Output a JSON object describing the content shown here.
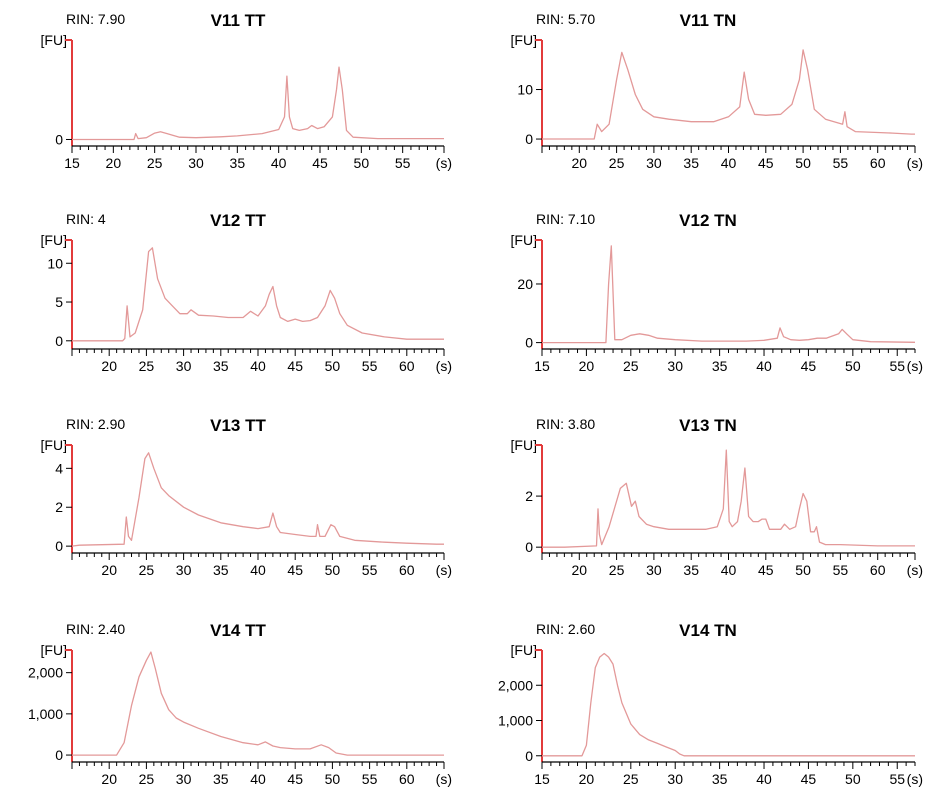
{
  "chart_data": [
    {
      "type": "line",
      "title": "V11 TT",
      "rin_label": "RIN: 7.90",
      "ylabel": "[FU]",
      "xlabel": "(s)",
      "xlim": [
        15,
        60
      ],
      "ylim": [
        -1,
        22
      ],
      "xticks": [
        15,
        20,
        25,
        30,
        35,
        40,
        45,
        50,
        55
      ],
      "yticks": [
        0
      ],
      "x_minor_end": 60,
      "series": [
        {
          "x": [
            15,
            22,
            22.5,
            22.7,
            23,
            24,
            25,
            25.7,
            26.5,
            28,
            30,
            33,
            35,
            38,
            40,
            40.7,
            41.0,
            41.3,
            41.7,
            42.5,
            43.5,
            44,
            44.7,
            45.5,
            46.5,
            47.0,
            47.3,
            47.7,
            48.2,
            49,
            52,
            60
          ],
          "y": [
            0,
            0,
            0,
            1.3,
            0.2,
            0.4,
            1.4,
            1.7,
            1.3,
            0.5,
            0.4,
            0.6,
            0.8,
            1.3,
            2.2,
            5.0,
            14.0,
            5.0,
            2.4,
            2.0,
            2.4,
            3.1,
            2.4,
            2.8,
            5.0,
            11.0,
            16.0,
            11.0,
            2.0,
            0.5,
            0.2,
            0.2
          ]
        }
      ]
    },
    {
      "type": "line",
      "title": "V11 TN",
      "rin_label": "RIN: 5.70",
      "ylabel": "[FU]",
      "xlabel": "(s)",
      "xlim": [
        15,
        65
      ],
      "ylim": [
        -1,
        20
      ],
      "xticks": [
        20,
        25,
        30,
        35,
        40,
        45,
        50,
        55,
        60
      ],
      "yticks": [
        0,
        10
      ],
      "x_minor_end": 65,
      "series": [
        {
          "x": [
            15,
            21,
            22,
            22.4,
            23,
            24,
            25,
            25.7,
            26.5,
            27.5,
            28.5,
            30,
            32,
            35,
            38,
            40,
            41.5,
            42.1,
            42.7,
            43.5,
            45,
            47,
            48.5,
            49.5,
            50,
            50.6,
            51.5,
            53,
            55.3,
            55.6,
            55.9,
            57,
            62,
            64.5,
            65
          ],
          "y": [
            0,
            0,
            0,
            3.0,
            1.5,
            3.0,
            12.0,
            17.5,
            14.0,
            9.0,
            6.0,
            4.5,
            4.0,
            3.5,
            3.5,
            4.5,
            6.5,
            13.5,
            8.0,
            5.0,
            4.8,
            5.0,
            7.0,
            12.0,
            18.0,
            14.0,
            6.0,
            4.0,
            3.0,
            5.5,
            2.5,
            1.5,
            1.2,
            1.0,
            1.0
          ]
        }
      ]
    },
    {
      "type": "line",
      "title": "V12 TT",
      "rin_label": "RIN: 4",
      "ylabel": "[FU]",
      "xlabel": "(s)",
      "xlim": [
        15,
        65
      ],
      "ylim": [
        -0.8,
        13
      ],
      "xticks": [
        20,
        25,
        30,
        35,
        40,
        45,
        50,
        55,
        60
      ],
      "yticks": [
        0,
        5,
        10
      ],
      "x_minor_end": 65,
      "series": [
        {
          "x": [
            15,
            21.8,
            22.1,
            22.4,
            22.8,
            23.5,
            24.5,
            25.3,
            25.8,
            26.5,
            27.5,
            28.5,
            29.5,
            30.5,
            31,
            32,
            34,
            36,
            38,
            39,
            40,
            41,
            41.5,
            42.0,
            42.5,
            43,
            44,
            45,
            46,
            47,
            48,
            49,
            49.7,
            50.3,
            51,
            52,
            54,
            57,
            60,
            65
          ],
          "y": [
            0,
            0,
            0.3,
            4.5,
            0.5,
            1.0,
            4.0,
            11.5,
            12.0,
            8.0,
            5.5,
            4.5,
            3.5,
            3.5,
            4.0,
            3.3,
            3.2,
            3.0,
            3.0,
            3.8,
            3.2,
            4.5,
            6.0,
            7.0,
            4.5,
            3.0,
            2.5,
            2.8,
            2.5,
            2.6,
            3.0,
            4.5,
            6.5,
            5.5,
            3.5,
            2.0,
            1.0,
            0.5,
            0.2,
            0.2
          ]
        }
      ]
    },
    {
      "type": "line",
      "title": "V12 TN",
      "rin_label": "RIN: 7.10",
      "ylabel": "[FU]",
      "xlabel": "(s)",
      "xlim": [
        15,
        57
      ],
      "ylim": [
        -1.5,
        35
      ],
      "xticks": [
        15,
        20,
        25,
        30,
        35,
        40,
        45,
        50,
        55
      ],
      "yticks": [
        0,
        20
      ],
      "x_minor_end": 60,
      "series": [
        {
          "x": [
            15,
            22.2,
            22.5,
            22.8,
            23.2,
            24,
            25,
            26,
            27,
            28,
            30,
            33,
            36,
            38,
            40,
            41.5,
            41.8,
            42.2,
            43,
            44,
            45,
            46,
            47,
            48.4,
            48.8,
            49.3,
            50,
            52,
            57
          ],
          "y": [
            0,
            0,
            20.0,
            33.0,
            1.0,
            1.0,
            2.5,
            3.0,
            2.5,
            1.5,
            1.0,
            0.5,
            0.5,
            0.5,
            0.8,
            1.5,
            5.0,
            2.0,
            1.0,
            0.8,
            1.0,
            1.5,
            1.5,
            3.0,
            4.5,
            3.0,
            1.0,
            0.3,
            0.1
          ]
        }
      ]
    },
    {
      "type": "line",
      "title": "V13 TT",
      "rin_label": "RIN: 2.90",
      "ylabel": "[FU]",
      "xlabel": "(s)",
      "xlim": [
        15,
        65
      ],
      "ylim": [
        -0.25,
        5.2
      ],
      "xticks": [
        20,
        25,
        30,
        35,
        40,
        45,
        50,
        55,
        60
      ],
      "yticks": [
        0,
        2,
        4
      ],
      "x_minor_end": 65,
      "series": [
        {
          "x": [
            15,
            16,
            22.0,
            22.3,
            22.6,
            23,
            24,
            24.8,
            25.3,
            26,
            27,
            28,
            30,
            32,
            35,
            38,
            40,
            41.5,
            42,
            42.5,
            43,
            45,
            47,
            47.8,
            48,
            48.3,
            49,
            49.8,
            50.3,
            51,
            53,
            57,
            60,
            64,
            65
          ],
          "y": [
            0,
            0.05,
            0.1,
            1.5,
            0.5,
            0.3,
            2.5,
            4.5,
            4.8,
            4.0,
            3.0,
            2.6,
            2.0,
            1.6,
            1.2,
            1.0,
            0.9,
            1.0,
            1.7,
            1.0,
            0.7,
            0.6,
            0.5,
            0.5,
            1.1,
            0.5,
            0.5,
            1.1,
            1.0,
            0.5,
            0.3,
            0.2,
            0.15,
            0.1,
            0.1
          ]
        }
      ]
    },
    {
      "type": "line",
      "title": "V13 TN",
      "rin_label": "RIN: 3.80",
      "ylabel": "[FU]",
      "xlabel": "(s)",
      "xlim": [
        15,
        65
      ],
      "ylim": [
        -0.15,
        4.0
      ],
      "xticks": [
        20,
        25,
        30,
        35,
        40,
        45,
        50,
        55,
        60
      ],
      "yticks": [
        0,
        2
      ],
      "x_minor_end": 65,
      "series": [
        {
          "x": [
            15,
            18,
            22.3,
            22.5,
            22.7,
            23,
            24,
            25.5,
            26.3,
            27,
            27.5,
            28,
            29,
            30,
            32,
            35,
            37,
            38.5,
            39.3,
            39.7,
            40.1,
            40.5,
            41.2,
            41.7,
            42.2,
            42.7,
            43.3,
            44,
            44.5,
            45,
            45.5,
            46,
            47,
            47.5,
            48.2,
            49,
            49.5,
            50,
            50.5,
            51,
            51.5,
            51.8,
            52.2,
            53,
            55,
            60,
            65
          ],
          "y": [
            0,
            0,
            0.05,
            1.5,
            0.5,
            0.1,
            0.8,
            2.3,
            2.5,
            1.6,
            1.8,
            1.2,
            0.9,
            0.8,
            0.7,
            0.7,
            0.7,
            0.8,
            1.5,
            3.8,
            1.0,
            0.8,
            1.0,
            1.8,
            3.1,
            1.2,
            1.0,
            1.0,
            1.1,
            1.1,
            0.7,
            0.7,
            0.7,
            0.9,
            0.7,
            0.8,
            1.5,
            2.1,
            1.8,
            0.6,
            0.6,
            0.8,
            0.2,
            0.1,
            0.1,
            0.05,
            0.05
          ]
        }
      ]
    },
    {
      "type": "line",
      "title": "V14 TT",
      "rin_label": "RIN: 2.40",
      "ylabel": "[FU]",
      "xlabel": "(s)",
      "xlim": [
        15,
        65
      ],
      "ylim": [
        -120,
        2550
      ],
      "xticks": [
        20,
        25,
        30,
        35,
        40,
        45,
        50,
        55,
        60
      ],
      "yticks": [
        0,
        1000,
        2000
      ],
      "ytick_labels": [
        "0",
        "1,000",
        "2,000"
      ],
      "x_minor_end": 65,
      "series": [
        {
          "x": [
            15,
            21,
            22,
            23,
            24,
            25,
            25.6,
            26.2,
            27,
            28,
            29,
            30,
            32,
            35,
            38,
            40,
            41,
            42,
            43,
            45,
            47,
            48.5,
            49.5,
            50.5,
            52,
            65
          ],
          "y": [
            0,
            0,
            300,
            1200,
            1900,
            2300,
            2500,
            2100,
            1500,
            1100,
            900,
            800,
            650,
            450,
            300,
            250,
            320,
            220,
            180,
            150,
            150,
            250,
            180,
            50,
            0,
            0
          ]
        }
      ]
    },
    {
      "type": "line",
      "title": "V14 TN",
      "rin_label": "RIN: 2.60",
      "ylabel": "[FU]",
      "xlabel": "(s)",
      "xlim": [
        15,
        57
      ],
      "ylim": [
        -120,
        3000
      ],
      "xticks": [
        15,
        20,
        25,
        30,
        35,
        40,
        45,
        50,
        55
      ],
      "yticks": [
        0,
        1000,
        2000
      ],
      "ytick_labels": [
        "0",
        "1,000",
        "2,000"
      ],
      "x_minor_end": 60,
      "series": [
        {
          "x": [
            15,
            19.5,
            20,
            20.5,
            21,
            21.5,
            22,
            22.5,
            23,
            23.5,
            24,
            25,
            26,
            27,
            28,
            29,
            30,
            30.5,
            31,
            57
          ],
          "y": [
            0,
            0,
            300,
            1500,
            2500,
            2800,
            2900,
            2800,
            2600,
            2000,
            1500,
            900,
            600,
            450,
            350,
            250,
            150,
            50,
            0,
            0
          ]
        }
      ]
    }
  ],
  "colors": {
    "trace": "#e39999",
    "axis": "#e23b3b"
  }
}
